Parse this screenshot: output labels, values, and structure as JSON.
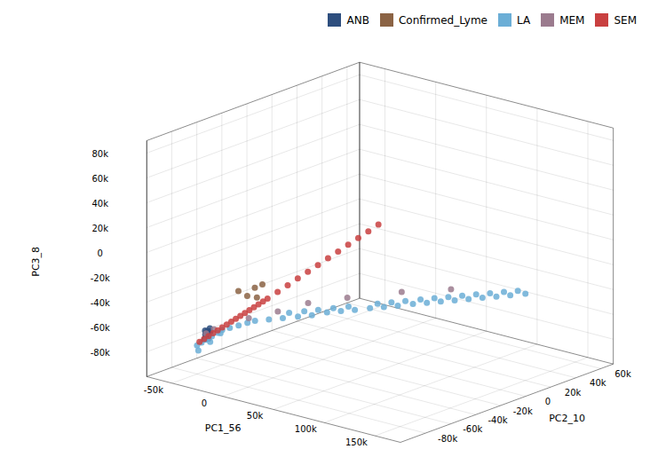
{
  "chart_data": {
    "type": "scatter3d",
    "xlabel": "PC1_56",
    "ylabel": "PC2_10",
    "zlabel": "PC3_8",
    "series": [
      {
        "name": "ANB",
        "color": "#2d4e7e",
        "x": [
          -58000,
          -56000,
          -55000,
          -57000,
          -59000,
          -56000,
          -55000,
          -58000,
          -57000,
          -56000,
          -55000,
          -57000,
          -58000
        ],
        "y": [
          -67000,
          -65000,
          -70000,
          -68000,
          -64000,
          -66000,
          -69000,
          -63000,
          -67000,
          -65000,
          -68000,
          -66000,
          -64000
        ],
        "z": [
          -75000,
          -73000,
          -77000,
          -71000,
          -75000,
          -78000,
          -72000,
          -74000,
          -76000,
          -70000,
          -74000,
          -72000,
          -76000
        ]
      },
      {
        "name": "Confirmed_Lyme",
        "color": "#8b6344",
        "x": [
          -55000,
          -50000,
          -45000,
          -40000,
          -38000
        ],
        "y": [
          -43000,
          -40000,
          -38000,
          -36000,
          -42000
        ],
        "z": [
          -48000,
          -52000,
          -45000,
          -42000,
          -50000
        ]
      },
      {
        "name": "LA",
        "color": "#6baed6",
        "x": [
          -60000,
          -58000,
          -56000,
          -54000,
          -52000,
          -50000,
          -45000,
          -40000,
          -35000,
          -30000,
          -20000,
          -10000,
          0,
          10000,
          20000,
          30000,
          40000,
          50000,
          60000,
          70000,
          80000,
          90000,
          100000,
          110000,
          120000,
          130000,
          140000,
          150000,
          160000,
          -55000,
          -52000,
          -48000,
          -5000,
          5000,
          15000,
          25000,
          35000,
          55000,
          65000,
          75000,
          85000,
          95000,
          105000,
          115000,
          125000,
          135000,
          145000,
          155000
        ],
        "y": [
          -72000,
          -70000,
          -68000,
          -65000,
          -62000,
          -60000,
          -58000,
          -55000,
          -52000,
          -50000,
          -47000,
          -44000,
          -40000,
          -37000,
          -33000,
          -30000,
          -27000,
          -23000,
          -20000,
          -17000,
          -13000,
          -10000,
          -7000,
          -4000,
          -1000,
          2000,
          5000,
          8000,
          12000,
          -75000,
          -68000,
          -63000,
          -43000,
          -39000,
          -36000,
          -32000,
          -28000,
          -21000,
          -18000,
          -15000,
          -11000,
          -8000,
          -5000,
          -2000,
          1000,
          4000,
          7000,
          10000
        ],
        "z": [
          -82000,
          -80000,
          -78000,
          -76000,
          -74000,
          -72000,
          -70000,
          -68000,
          -66000,
          -64000,
          -62000,
          -60000,
          -58000,
          -56000,
          -53000,
          -51000,
          -49000,
          -47000,
          -45000,
          -43000,
          -41000,
          -39000,
          -37000,
          -35000,
          -33000,
          -31000,
          -29000,
          -27000,
          -25000,
          -84000,
          -79000,
          -73000,
          -55000,
          -53000,
          -51000,
          -49000,
          -47000,
          -43000,
          -41000,
          -39000,
          -37000,
          -35000,
          -33000,
          -31000,
          -29000,
          -27000,
          -25000,
          -23000
        ]
      },
      {
        "name": "MEM",
        "color": "#9b7b8e",
        "x": [
          -56000,
          -52000,
          -30000,
          -10000,
          10000,
          40000,
          80000,
          120000
        ],
        "y": [
          -68000,
          -65000,
          -55000,
          -48000,
          -40000,
          -33000,
          -22000,
          -15000
        ],
        "z": [
          -73000,
          -70000,
          -60000,
          -53000,
          -45000,
          -37000,
          -28000,
          -20000
        ]
      },
      {
        "name": "SEM",
        "color": "#c94040",
        "x": [
          -60000,
          -58000,
          -56000,
          -54000,
          -52000,
          -50000,
          -48000,
          -46000,
          -44000,
          -42000,
          -40000,
          -38000,
          -36000,
          -34000,
          -32000,
          -30000,
          -25000,
          -20000,
          -15000,
          -10000,
          -5000,
          0,
          5000,
          10000,
          15000,
          20000,
          25000
        ],
        "y": [
          -70000,
          -68000,
          -66000,
          -64000,
          -62000,
          -60000,
          -58000,
          -56000,
          -54000,
          -52000,
          -50000,
          -48000,
          -46000,
          -44000,
          -42000,
          -40000,
          -36000,
          -32000,
          -28000,
          -24000,
          -20000,
          -16000,
          -12000,
          -8000,
          -4000,
          0,
          4000
        ],
        "z": [
          -80000,
          -78000,
          -76000,
          -74000,
          -72000,
          -70000,
          -68000,
          -66000,
          -64000,
          -62000,
          -60000,
          -58000,
          -56000,
          -54000,
          -52000,
          -50000,
          -45000,
          -40000,
          -35000,
          -30000,
          -25000,
          -20000,
          -15000,
          -10000,
          -5000,
          0,
          5000
        ]
      }
    ],
    "xlim": [
      -75000,
      175000
    ],
    "ylim": [
      -100000,
      70000
    ],
    "zlim": [
      -100000,
      90000
    ],
    "xticks": [
      {
        "value": -50000,
        "label": "-50k"
      },
      0,
      {
        "value": 50000,
        "label": "50k"
      },
      {
        "value": 100000,
        "label": "100k"
      },
      {
        "value": 150000,
        "label": "150k"
      }
    ],
    "yticks": [
      {
        "value": -80000,
        "label": "-80k"
      },
      {
        "value": -60000,
        "label": "-60k"
      },
      {
        "value": -40000,
        "label": "-40k"
      },
      {
        "value": -20000,
        "label": "-20k"
      },
      0,
      {
        "value": 20000,
        "label": "20k"
      },
      {
        "value": 40000,
        "label": "40k"
      },
      {
        "value": 60000,
        "label": "60k"
      }
    ],
    "zticks": [
      {
        "value": -80000,
        "label": "-80k"
      },
      {
        "value": -60000,
        "label": "-60k"
      },
      {
        "value": -40000,
        "label": "-40k"
      },
      {
        "value": -20000,
        "label": "-20k"
      },
      0,
      {
        "value": 20000,
        "label": "20k"
      },
      {
        "value": 40000,
        "label": "40k"
      },
      {
        "value": 60000,
        "label": "60k"
      },
      {
        "value": 80000,
        "label": "80k"
      }
    ],
    "grid": true,
    "legend": "upper right"
  }
}
